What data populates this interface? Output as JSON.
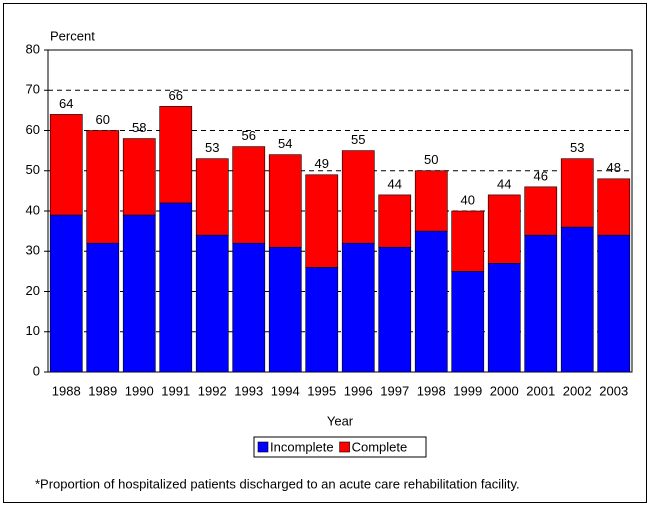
{
  "chart_data": {
    "type": "stacked-bar",
    "y_label": "Percent",
    "x_label": "Year",
    "footnote": "*Proportion of hospitalized patients discharged to an acute care rehabilitation facility.",
    "categories": [
      "1988",
      "1989",
      "1990",
      "1991",
      "1992",
      "1993",
      "1994",
      "1995",
      "1996",
      "1997",
      "1998",
      "1999",
      "2000",
      "2001",
      "2002",
      "2003"
    ],
    "series": [
      {
        "name": "Incomplete",
        "color": "#0000ff",
        "values": [
          39,
          32,
          39,
          42,
          34,
          32,
          31,
          26,
          32,
          31,
          35,
          25,
          27,
          34,
          36,
          34
        ]
      },
      {
        "name": "Complete",
        "color": "#ff0000",
        "values": [
          25,
          28,
          19,
          24,
          19,
          24,
          23,
          23,
          23,
          13,
          15,
          15,
          17,
          12,
          17,
          14
        ]
      }
    ],
    "totals": [
      64,
      60,
      58,
      66,
      53,
      56,
      54,
      49,
      55,
      44,
      50,
      40,
      44,
      46,
      53,
      48
    ],
    "ylim": [
      0,
      80
    ],
    "yticks": [
      0,
      10,
      20,
      30,
      40,
      50,
      60,
      70,
      80
    ],
    "grid": true
  }
}
